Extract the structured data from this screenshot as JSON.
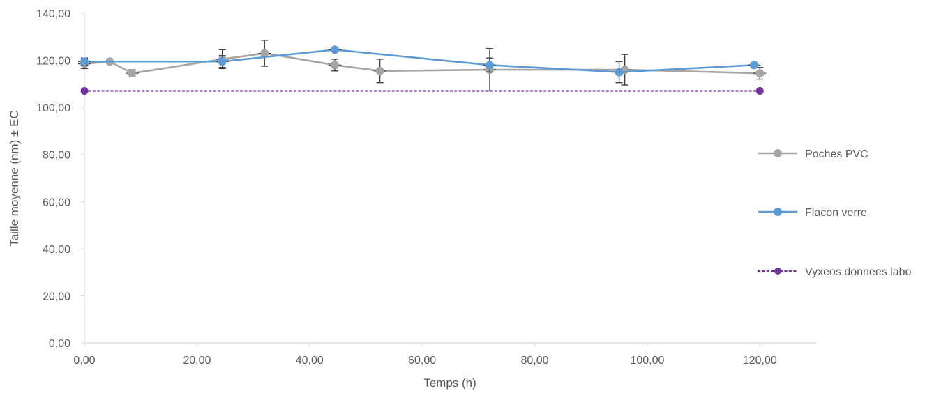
{
  "chart_data": {
    "type": "scatter",
    "title": "",
    "xlabel": "Temps (h)",
    "ylabel": "Taille moyenne (nm) ± EC",
    "xlim": [
      0,
      130
    ],
    "ylim": [
      0,
      140
    ],
    "xticks": [
      0,
      20,
      40,
      60,
      80,
      100,
      120
    ],
    "yticks": [
      0,
      20,
      40,
      60,
      80,
      100,
      120,
      140
    ],
    "xtick_labels": [
      "0,00",
      "20,00",
      "40,00",
      "60,00",
      "80,00",
      "100,00",
      "120,00"
    ],
    "ytick_labels": [
      "0,00",
      "20,00",
      "40,00",
      "60,00",
      "80,00",
      "100,00",
      "120,00",
      "140,00"
    ],
    "grid": false,
    "legend_position": "right",
    "series": [
      {
        "name": "Poches PVC",
        "color": "#A5A5A5",
        "line_style": "solid",
        "points": [
          {
            "x": 0.0,
            "y": 118.5,
            "err": 2.0
          },
          {
            "x": 4.5,
            "y": 119.5,
            "err": 0.8
          },
          {
            "x": 8.5,
            "y": 114.5,
            "err": 1.5
          },
          {
            "x": 24.5,
            "y": 120.5,
            "err": 4.0
          },
          {
            "x": 32.0,
            "y": 123.0,
            "err": 5.5
          },
          {
            "x": 44.5,
            "y": 118.0,
            "err": 2.5
          },
          {
            "x": 52.5,
            "y": 115.5,
            "err": 5.0
          },
          {
            "x": 72.0,
            "y": 116.0,
            "err": 9.0
          },
          {
            "x": 96.0,
            "y": 116.0,
            "err": 6.5
          },
          {
            "x": 120.0,
            "y": 114.5,
            "err": 2.5
          }
        ]
      },
      {
        "name": "Flacon verre",
        "color": "#5B9BD5",
        "line_style": "solid",
        "points": [
          {
            "x": 0.0,
            "y": 119.5,
            "err": 1.5
          },
          {
            "x": 24.5,
            "y": 119.5,
            "err": 2.5
          },
          {
            "x": 44.5,
            "y": 124.5,
            "err": 0.8
          },
          {
            "x": 72.0,
            "y": 118.0,
            "err": 3.0
          },
          {
            "x": 95.0,
            "y": 115.0,
            "err": 4.5
          },
          {
            "x": 119.0,
            "y": 118.0,
            "err": 1.0
          }
        ]
      },
      {
        "name": "Vyxeos donnees labo",
        "color": "#7030A0",
        "line_style": "dotted",
        "points": [
          {
            "x": 0.0,
            "y": 107.0
          },
          {
            "x": 120.0,
            "y": 107.0
          }
        ]
      }
    ]
  }
}
